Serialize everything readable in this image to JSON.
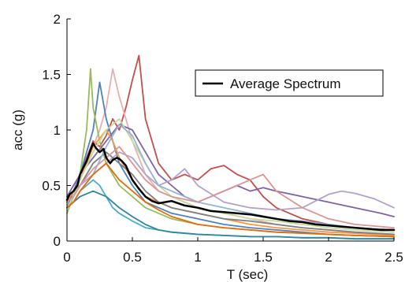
{
  "chart_data": {
    "type": "line",
    "title": "",
    "xlabel": "T (sec)",
    "ylabel": "acc (g)",
    "xlim": [
      0,
      2.5
    ],
    "ylim": [
      0,
      2
    ],
    "xticks": [
      {
        "value": 0,
        "label": "0"
      },
      {
        "value": 0.5,
        "label": "0.5"
      },
      {
        "value": 1,
        "label": "1"
      },
      {
        "value": 1.5,
        "label": "1.5"
      },
      {
        "value": 2,
        "label": "2"
      },
      {
        "value": 2.5,
        "label": "2.5"
      }
    ],
    "yticks": [
      {
        "value": 0,
        "label": "0"
      },
      {
        "value": 0.5,
        "label": "0.5"
      },
      {
        "value": 1,
        "label": "1"
      },
      {
        "value": 1.5,
        "label": "1.5"
      },
      {
        "value": 2,
        "label": "2"
      }
    ],
    "grid": false,
    "legend": {
      "position": "top-right",
      "entries": [
        "Average Spectrum"
      ]
    },
    "series": [
      {
        "color": "#c0504d",
        "x": [
          0,
          0.05,
          0.1,
          0.15,
          0.2,
          0.25,
          0.3,
          0.35,
          0.4,
          0.45,
          0.5,
          0.55,
          0.6,
          0.7,
          0.8,
          0.9,
          1.0,
          1.1,
          1.2,
          1.3,
          1.4,
          1.5,
          1.6,
          1.8,
          2.0,
          2.2,
          2.5
        ],
        "y": [
          0.35,
          0.45,
          0.6,
          0.75,
          0.9,
          0.85,
          0.95,
          1.1,
          1.0,
          1.2,
          1.45,
          1.67,
          1.1,
          0.7,
          0.55,
          0.6,
          0.55,
          0.65,
          0.68,
          0.6,
          0.55,
          0.4,
          0.3,
          0.2,
          0.15,
          0.12,
          0.1
        ]
      },
      {
        "color": "#e6b0b0",
        "x": [
          0,
          0.05,
          0.1,
          0.15,
          0.2,
          0.25,
          0.3,
          0.35,
          0.4,
          0.45,
          0.5,
          0.6,
          0.7,
          0.8,
          1.0,
          1.2,
          1.4,
          1.6,
          1.8,
          2.0,
          2.2,
          2.5
        ],
        "y": [
          0.3,
          0.4,
          0.55,
          0.7,
          0.85,
          1.0,
          1.2,
          1.55,
          1.3,
          1.1,
          0.9,
          0.6,
          0.45,
          0.4,
          0.3,
          0.25,
          0.2,
          0.15,
          0.12,
          0.1,
          0.08,
          0.06
        ]
      },
      {
        "color": "#4f81bd",
        "x": [
          0,
          0.05,
          0.1,
          0.15,
          0.2,
          0.25,
          0.3,
          0.35,
          0.4,
          0.5,
          0.6,
          0.7,
          0.8,
          1.0,
          1.2,
          1.4,
          1.6,
          1.8,
          2.0,
          2.2,
          2.5
        ],
        "y": [
          0.3,
          0.45,
          0.6,
          0.8,
          1.0,
          1.43,
          1.1,
          0.9,
          0.7,
          0.5,
          0.35,
          0.3,
          0.25,
          0.2,
          0.15,
          0.12,
          0.1,
          0.08,
          0.06,
          0.05,
          0.04
        ]
      },
      {
        "color": "#9bbb59",
        "x": [
          0,
          0.05,
          0.1,
          0.15,
          0.18,
          0.2,
          0.25,
          0.3,
          0.35,
          0.4,
          0.5,
          0.6,
          0.7,
          0.8,
          1.0,
          1.2,
          1.4,
          1.6,
          1.8,
          2.0,
          2.2,
          2.5
        ],
        "y": [
          0.25,
          0.4,
          0.6,
          1.0,
          1.55,
          1.2,
          0.9,
          0.7,
          0.6,
          0.5,
          0.4,
          0.3,
          0.25,
          0.2,
          0.15,
          0.12,
          0.1,
          0.08,
          0.07,
          0.06,
          0.05,
          0.04
        ]
      },
      {
        "color": "#8064a2",
        "x": [
          0,
          0.05,
          0.1,
          0.2,
          0.3,
          0.4,
          0.5,
          0.6,
          0.7,
          0.8,
          0.9,
          1.0,
          1.1,
          1.2,
          1.3,
          1.4,
          1.5,
          1.6,
          1.8,
          2.0,
          2.2,
          2.4,
          2.5
        ],
        "y": [
          0.4,
          0.5,
          0.6,
          0.75,
          0.9,
          1.05,
          1.0,
          0.8,
          0.6,
          0.5,
          0.4,
          0.35,
          0.4,
          0.45,
          0.5,
          0.45,
          0.48,
          0.45,
          0.4,
          0.35,
          0.3,
          0.25,
          0.22
        ]
      },
      {
        "color": "#b3a2c7",
        "x": [
          0,
          0.05,
          0.1,
          0.2,
          0.3,
          0.4,
          0.5,
          0.6,
          0.7,
          0.8,
          0.9,
          1.0,
          1.2,
          1.4,
          1.6,
          1.8,
          2.0,
          2.1,
          2.2,
          2.35,
          2.5
        ],
        "y": [
          0.35,
          0.45,
          0.5,
          0.6,
          0.7,
          0.8,
          0.75,
          0.6,
          0.5,
          0.55,
          0.65,
          0.5,
          0.35,
          0.3,
          0.28,
          0.3,
          0.42,
          0.45,
          0.43,
          0.38,
          0.3
        ]
      },
      {
        "color": "#4bacc6",
        "x": [
          0,
          0.05,
          0.1,
          0.15,
          0.2,
          0.25,
          0.3,
          0.35,
          0.4,
          0.5,
          0.6,
          0.7,
          0.8,
          1.0,
          1.2,
          1.4,
          1.6,
          1.8,
          2.0,
          2.2,
          2.5
        ],
        "y": [
          0.3,
          0.35,
          0.45,
          0.5,
          0.55,
          0.5,
          0.4,
          0.3,
          0.25,
          0.18,
          0.12,
          0.1,
          0.08,
          0.06,
          0.05,
          0.04,
          0.04,
          0.03,
          0.03,
          0.02,
          0.02
        ]
      },
      {
        "color": "#f79646",
        "x": [
          0,
          0.05,
          0.1,
          0.2,
          0.3,
          0.35,
          0.4,
          0.5,
          0.6,
          0.7,
          0.8,
          1.0,
          1.2,
          1.4,
          1.6,
          1.8,
          2.0,
          2.2,
          2.5
        ],
        "y": [
          0.35,
          0.45,
          0.55,
          0.85,
          1.0,
          0.9,
          0.75,
          0.55,
          0.4,
          0.35,
          0.3,
          0.25,
          0.2,
          0.15,
          0.12,
          0.1,
          0.08,
          0.07,
          0.05
        ]
      },
      {
        "color": "#c6d9a0",
        "x": [
          0,
          0.05,
          0.1,
          0.2,
          0.3,
          0.4,
          0.5,
          0.6,
          0.7,
          0.8,
          1.0,
          1.2,
          1.4,
          1.6,
          1.8,
          2.0,
          2.2,
          2.5
        ],
        "y": [
          0.3,
          0.4,
          0.55,
          0.8,
          1.0,
          1.1,
          0.9,
          0.7,
          0.5,
          0.4,
          0.3,
          0.25,
          0.2,
          0.18,
          0.15,
          0.12,
          0.1,
          0.08
        ]
      },
      {
        "color": "#7f7f7f",
        "x": [
          0,
          0.05,
          0.1,
          0.2,
          0.3,
          0.4,
          0.5,
          0.6,
          0.7,
          0.8,
          1.0,
          1.2,
          1.4,
          1.6,
          1.8,
          2.0,
          2.2,
          2.5
        ],
        "y": [
          0.35,
          0.4,
          0.5,
          0.7,
          0.8,
          0.7,
          0.6,
          0.45,
          0.35,
          0.3,
          0.25,
          0.2,
          0.18,
          0.15,
          0.12,
          0.1,
          0.08,
          0.06
        ]
      },
      {
        "color": "#95b3d7",
        "x": [
          0,
          0.05,
          0.1,
          0.2,
          0.3,
          0.4,
          0.5,
          0.6,
          0.7,
          0.8,
          0.9,
          1.0,
          1.2,
          1.4,
          1.6,
          1.8,
          2.0,
          2.2,
          2.5
        ],
        "y": [
          0.3,
          0.35,
          0.45,
          0.6,
          0.85,
          1.05,
          0.95,
          0.7,
          0.5,
          0.45,
          0.4,
          0.35,
          0.3,
          0.25,
          0.2,
          0.18,
          0.15,
          0.12,
          0.1
        ]
      },
      {
        "color": "#d99694",
        "x": [
          0,
          0.05,
          0.1,
          0.2,
          0.3,
          0.4,
          0.5,
          0.6,
          0.7,
          0.8,
          1.0,
          1.2,
          1.4,
          1.5,
          1.6,
          1.8,
          2.0,
          2.2,
          2.5
        ],
        "y": [
          0.35,
          0.4,
          0.5,
          0.65,
          0.75,
          0.85,
          0.7,
          0.55,
          0.45,
          0.4,
          0.35,
          0.45,
          0.55,
          0.6,
          0.45,
          0.3,
          0.2,
          0.15,
          0.12
        ]
      },
      {
        "color": "#31859c",
        "x": [
          0,
          0.05,
          0.1,
          0.2,
          0.3,
          0.4,
          0.5,
          0.6,
          0.7,
          0.8,
          1.0,
          1.2,
          1.4,
          1.6,
          1.8,
          2.0,
          2.2,
          2.5
        ],
        "y": [
          0.3,
          0.35,
          0.4,
          0.45,
          0.4,
          0.3,
          0.22,
          0.15,
          0.1,
          0.08,
          0.06,
          0.05,
          0.04,
          0.04,
          0.03,
          0.03,
          0.02,
          0.02
        ]
      },
      {
        "color": "#e46c0a",
        "x": [
          0,
          0.05,
          0.1,
          0.2,
          0.3,
          0.4,
          0.5,
          0.6,
          0.7,
          0.8,
          1.0,
          1.2,
          1.4,
          1.6,
          1.8,
          2.0,
          2.2,
          2.5
        ],
        "y": [
          0.3,
          0.35,
          0.45,
          0.6,
          0.7,
          0.55,
          0.45,
          0.35,
          0.28,
          0.22,
          0.15,
          0.12,
          0.1,
          0.08,
          0.07,
          0.06,
          0.05,
          0.04
        ]
      },
      {
        "color": "#000000",
        "x": [
          0,
          0.02,
          0.05,
          0.08,
          0.1,
          0.12,
          0.15,
          0.18,
          0.2,
          0.22,
          0.25,
          0.28,
          0.3,
          0.33,
          0.35,
          0.38,
          0.4,
          0.42,
          0.45,
          0.48,
          0.5,
          0.55,
          0.6,
          0.65,
          0.7,
          0.75,
          0.8,
          0.9,
          1.0,
          1.1,
          1.2,
          1.3,
          1.4,
          1.5,
          1.6,
          1.7,
          1.8,
          1.9,
          2.0,
          2.1,
          2.2,
          2.3,
          2.4,
          2.5
        ],
        "y": [
          0.37,
          0.42,
          0.45,
          0.5,
          0.6,
          0.65,
          0.72,
          0.82,
          0.88,
          0.84,
          0.8,
          0.83,
          0.75,
          0.7,
          0.73,
          0.75,
          0.74,
          0.72,
          0.68,
          0.6,
          0.55,
          0.47,
          0.4,
          0.36,
          0.34,
          0.35,
          0.36,
          0.32,
          0.3,
          0.27,
          0.26,
          0.25,
          0.24,
          0.22,
          0.2,
          0.18,
          0.17,
          0.15,
          0.14,
          0.13,
          0.12,
          0.11,
          0.1,
          0.1
        ]
      }
    ]
  }
}
